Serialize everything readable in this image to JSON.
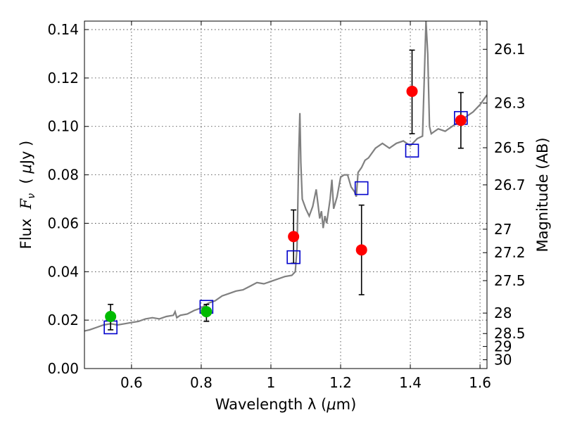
{
  "chart_data": {
    "type": "scatter",
    "xlabel_prefix": "Wavelength  λ (",
    "xlabel_unit": "μ",
    "xlabel_suffix": "m)",
    "ylabel_prefix": "Flux  ",
    "ylabel_var": "F",
    "ylabel_sub": "ν",
    "ylabel_unit_open": "  ( ",
    "ylabel_unit_mu": "μ",
    "ylabel_unit_close": "Jy )",
    "y2label": "Magnitude (AB)",
    "xlim": [
      0.465,
      1.62
    ],
    "ylim": [
      0.0,
      0.1435
    ],
    "grid": true,
    "x_ticks": [
      {
        "value": 0.6,
        "label": "0.6"
      },
      {
        "value": 0.8,
        "label": "0.8"
      },
      {
        "value": 1.0,
        "label": "1"
      },
      {
        "value": 1.2,
        "label": "1.2"
      },
      {
        "value": 1.4,
        "label": "1.4"
      },
      {
        "value": 1.6,
        "label": "1.6"
      }
    ],
    "y_ticks": [
      {
        "value": 0.0,
        "label": "0.00"
      },
      {
        "value": 0.02,
        "label": "0.02"
      },
      {
        "value": 0.04,
        "label": "0.04"
      },
      {
        "value": 0.06,
        "label": "0.06"
      },
      {
        "value": 0.08,
        "label": "0.08"
      },
      {
        "value": 0.1,
        "label": "0.10"
      },
      {
        "value": 0.12,
        "label": "0.12"
      },
      {
        "value": 0.14,
        "label": "0.14"
      }
    ],
    "mag_ticks": [
      {
        "mag": 26.1,
        "label": "26.1"
      },
      {
        "mag": 26.3,
        "label": "26.3"
      },
      {
        "mag": 26.5,
        "label": "26.5"
      },
      {
        "mag": 26.7,
        "label": "26.7"
      },
      {
        "mag": 27.0,
        "label": "27"
      },
      {
        "mag": 27.2,
        "label": "27.2"
      },
      {
        "mag": 27.5,
        "label": "27.5"
      },
      {
        "mag": 28.0,
        "label": "28"
      },
      {
        "mag": 28.5,
        "label": "28.5"
      },
      {
        "mag": 29.0,
        "label": "29"
      },
      {
        "mag": 30.0,
        "label": "30"
      }
    ],
    "colors": {
      "spectrum": "#808080",
      "model": "#0000cc",
      "detection_red": "#ff0000",
      "detection_green": "#00bb00",
      "errorbar": "#000000"
    },
    "series": [
      {
        "name": "model spectrum",
        "style": "line",
        "x": [
          0.465,
          0.48,
          0.5,
          0.52,
          0.54,
          0.56,
          0.58,
          0.6,
          0.62,
          0.64,
          0.66,
          0.68,
          0.7,
          0.72,
          0.725,
          0.73,
          0.74,
          0.76,
          0.78,
          0.8,
          0.82,
          0.84,
          0.86,
          0.88,
          0.9,
          0.92,
          0.94,
          0.96,
          0.98,
          1.0,
          1.02,
          1.04,
          1.06,
          1.07,
          1.075,
          1.08,
          1.083,
          1.086,
          1.09,
          1.1,
          1.11,
          1.12,
          1.13,
          1.14,
          1.145,
          1.15,
          1.155,
          1.16,
          1.17,
          1.175,
          1.18,
          1.19,
          1.2,
          1.21,
          1.22,
          1.23,
          1.24,
          1.245,
          1.25,
          1.26,
          1.27,
          1.28,
          1.3,
          1.32,
          1.34,
          1.36,
          1.38,
          1.4,
          1.42,
          1.435,
          1.44,
          1.445,
          1.45,
          1.455,
          1.46,
          1.47,
          1.48,
          1.5,
          1.52,
          1.54,
          1.56,
          1.58,
          1.6,
          1.62
        ],
        "y": [
          0.0155,
          0.016,
          0.017,
          0.018,
          0.0185,
          0.018,
          0.0185,
          0.019,
          0.0195,
          0.0205,
          0.021,
          0.0205,
          0.0215,
          0.022,
          0.0235,
          0.021,
          0.022,
          0.0225,
          0.024,
          0.025,
          0.027,
          0.028,
          0.03,
          0.031,
          0.032,
          0.0325,
          0.034,
          0.0355,
          0.035,
          0.036,
          0.037,
          0.038,
          0.0385,
          0.04,
          0.05,
          0.09,
          0.1055,
          0.085,
          0.07,
          0.066,
          0.063,
          0.067,
          0.074,
          0.062,
          0.065,
          0.058,
          0.063,
          0.06,
          0.07,
          0.078,
          0.066,
          0.071,
          0.079,
          0.08,
          0.08,
          0.075,
          0.073,
          0.071,
          0.081,
          0.083,
          0.086,
          0.087,
          0.091,
          0.093,
          0.091,
          0.093,
          0.094,
          0.092,
          0.095,
          0.096,
          0.12,
          0.1435,
          0.13,
          0.1,
          0.097,
          0.098,
          0.099,
          0.098,
          0.1,
          0.102,
          0.104,
          0.106,
          0.109,
          0.113
        ]
      },
      {
        "name": "model bandpass",
        "style": "open-square",
        "x": [
          0.54,
          0.815,
          1.065,
          1.26,
          1.405,
          1.545
        ],
        "y": [
          0.017,
          0.0255,
          0.046,
          0.0745,
          0.09,
          0.1035
        ]
      },
      {
        "name": "detections",
        "style": "filled-circle",
        "points": [
          {
            "x": 0.54,
            "y": 0.0215,
            "err_lo": 0.016,
            "err_hi": 0.0265,
            "color": "#00bb00"
          },
          {
            "x": 0.815,
            "y": 0.0235,
            "err_lo": 0.0195,
            "err_hi": 0.0265,
            "color": "#00bb00"
          },
          {
            "x": 1.065,
            "y": 0.0545,
            "err_lo": 0.0435,
            "err_hi": 0.0655,
            "color": "#ff0000"
          },
          {
            "x": 1.26,
            "y": 0.049,
            "err_lo": 0.0305,
            "err_hi": 0.0675,
            "color": "#ff0000"
          },
          {
            "x": 1.405,
            "y": 0.1145,
            "err_lo": 0.097,
            "err_hi": 0.1315,
            "color": "#ff0000"
          },
          {
            "x": 1.545,
            "y": 0.1025,
            "err_lo": 0.091,
            "err_hi": 0.114,
            "color": "#ff0000"
          }
        ]
      }
    ]
  }
}
